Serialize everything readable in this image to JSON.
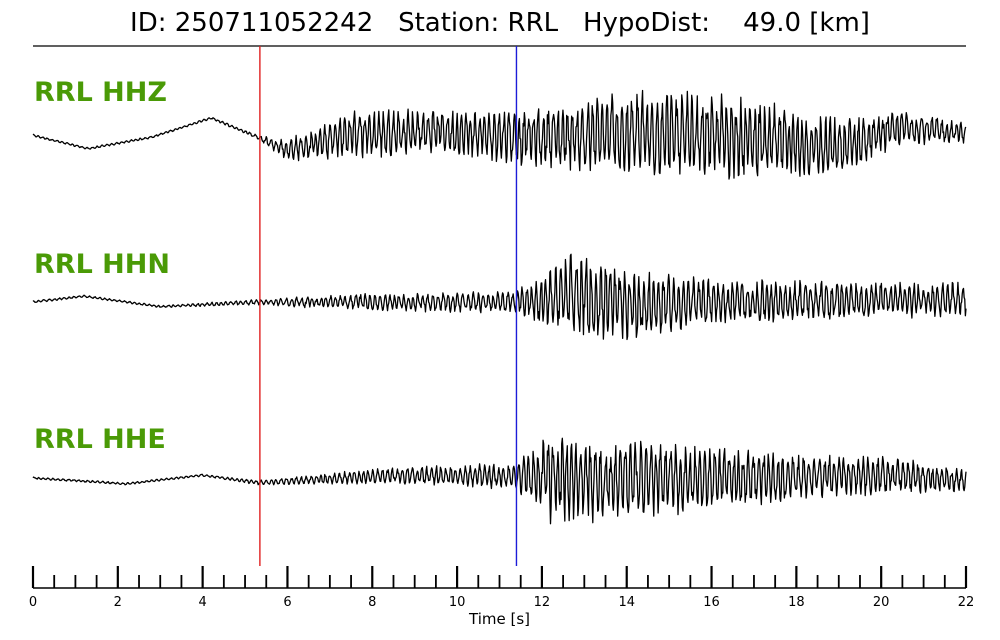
{
  "title": {
    "id_label": "ID:",
    "id_value": "250711052242",
    "station_label": "Station:",
    "station_value": "RRL",
    "dist_label": "HypoDist:",
    "dist_value": "49.0",
    "dist_unit": "[km]"
  },
  "colors": {
    "trace": "#000000",
    "channel_label": "#4a9a06",
    "p_pick": "#e02020",
    "s_pick": "#1c1cd8"
  },
  "chart_data": {
    "type": "line",
    "xlabel": "Time [s]",
    "xlim": [
      0,
      22
    ],
    "x_major_ticks": [
      0,
      2,
      4,
      6,
      8,
      10,
      12,
      14,
      16,
      18,
      20,
      22
    ],
    "x_tick_labels": [
      "0",
      "2",
      "4",
      "6",
      "8",
      "10",
      "12",
      "14",
      "16",
      "18",
      "20",
      "22"
    ],
    "x_minor_tick_step": 0.5,
    "picks": [
      {
        "phase": "P",
        "time": 5.35,
        "color": "#e02020"
      },
      {
        "phase": "S",
        "time": 11.4,
        "color": "#1c1cd8"
      }
    ],
    "series": [
      {
        "name": "RRL HHZ",
        "envelope": [
          {
            "t": 0,
            "level": 0.08,
            "amp": 0.02
          },
          {
            "t": 1.3,
            "level": -0.15,
            "amp": 0.02
          },
          {
            "t": 2.8,
            "level": 0.05,
            "amp": 0.02
          },
          {
            "t": 4.2,
            "level": 0.38,
            "amp": 0.02
          },
          {
            "t": 5.3,
            "level": 0.05,
            "amp": 0.04
          },
          {
            "t": 6.0,
            "level": -0.18,
            "amp": 0.2
          },
          {
            "t": 7.5,
            "level": 0.1,
            "amp": 0.45
          },
          {
            "t": 9.5,
            "level": 0.15,
            "amp": 0.4
          },
          {
            "t": 11.4,
            "level": 0.05,
            "amp": 0.5
          },
          {
            "t": 14.0,
            "level": 0.1,
            "amp": 0.8
          },
          {
            "t": 16.5,
            "level": 0.05,
            "amp": 0.75
          },
          {
            "t": 19.0,
            "level": -0.15,
            "amp": 0.55
          },
          {
            "t": 20.5,
            "level": 0.22,
            "amp": 0.3
          },
          {
            "t": 22.0,
            "level": 0.12,
            "amp": 0.2
          }
        ]
      },
      {
        "name": "RRL HHN",
        "envelope": [
          {
            "t": 0,
            "level": 0.0,
            "amp": 0.02
          },
          {
            "t": 1.2,
            "level": 0.1,
            "amp": 0.02
          },
          {
            "t": 3.0,
            "level": -0.08,
            "amp": 0.02
          },
          {
            "t": 5.3,
            "level": 0.0,
            "amp": 0.05
          },
          {
            "t": 7.5,
            "level": 0.0,
            "amp": 0.15
          },
          {
            "t": 11.4,
            "level": 0.0,
            "amp": 0.2
          },
          {
            "t": 12.8,
            "level": 0.1,
            "amp": 0.8
          },
          {
            "t": 14.0,
            "level": -0.05,
            "amp": 0.65
          },
          {
            "t": 16.0,
            "level": 0.0,
            "amp": 0.4
          },
          {
            "t": 22.0,
            "level": 0.05,
            "amp": 0.3
          }
        ]
      },
      {
        "name": "RRL HHE",
        "envelope": [
          {
            "t": 0,
            "level": 0.0,
            "amp": 0.02
          },
          {
            "t": 2.2,
            "level": -0.1,
            "amp": 0.02
          },
          {
            "t": 4.0,
            "level": 0.05,
            "amp": 0.02
          },
          {
            "t": 5.3,
            "level": -0.08,
            "amp": 0.04
          },
          {
            "t": 8.5,
            "level": 0.05,
            "amp": 0.15
          },
          {
            "t": 11.4,
            "level": 0.02,
            "amp": 0.25
          },
          {
            "t": 12.2,
            "level": 0.0,
            "amp": 0.8
          },
          {
            "t": 14.0,
            "level": -0.05,
            "amp": 0.75
          },
          {
            "t": 16.5,
            "level": 0.0,
            "amp": 0.5
          },
          {
            "t": 20.0,
            "level": 0.05,
            "amp": 0.35
          },
          {
            "t": 22.0,
            "level": -0.05,
            "amp": 0.2
          }
        ]
      }
    ]
  }
}
